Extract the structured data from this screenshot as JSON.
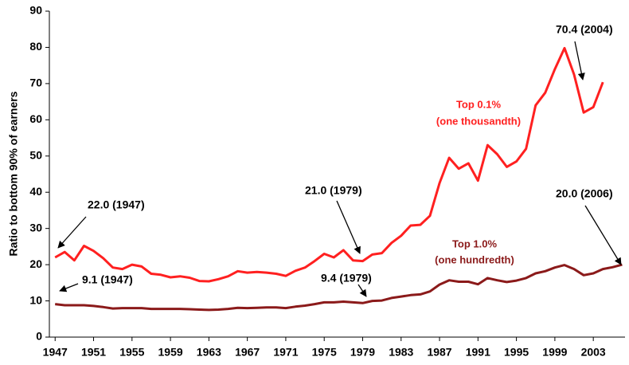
{
  "chart_data": {
    "type": "line",
    "y_label": "Ratio to bottom 90% of earners",
    "x": [
      1947,
      1948,
      1949,
      1950,
      1951,
      1952,
      1953,
      1954,
      1955,
      1956,
      1957,
      1958,
      1959,
      1960,
      1961,
      1962,
      1963,
      1964,
      1965,
      1966,
      1967,
      1968,
      1969,
      1970,
      1971,
      1972,
      1973,
      1974,
      1975,
      1976,
      1977,
      1978,
      1979,
      1980,
      1981,
      1982,
      1983,
      1984,
      1985,
      1986,
      1987,
      1988,
      1989,
      1990,
      1991,
      1992,
      1993,
      1994,
      1995,
      1996,
      1997,
      1998,
      1999,
      2000,
      2001,
      2002,
      2003,
      2004,
      2005,
      2006
    ],
    "series": [
      {
        "name": "Top 0.1%",
        "description": "(one thousandth)",
        "color": "#ff2020",
        "values": [
          22.0,
          23.5,
          21.2,
          25.2,
          23.8,
          21.8,
          19.2,
          18.8,
          20.0,
          19.5,
          17.5,
          17.2,
          16.5,
          16.8,
          16.4,
          15.5,
          15.4,
          16.0,
          16.8,
          18.2,
          17.8,
          18.0,
          17.8,
          17.5,
          16.9,
          18.3,
          19.2,
          21.0,
          23.0,
          22.0,
          24.0,
          21.2,
          21.0,
          22.8,
          23.2,
          26.0,
          28.0,
          30.8,
          31.0,
          33.5,
          42.5,
          49.5,
          46.5,
          48.0,
          43.2,
          53.0,
          50.5,
          47.0,
          48.5,
          52.0,
          64.0,
          67.5,
          74.0,
          79.8,
          72.5,
          62.0,
          63.5,
          70.4,
          null,
          null
        ]
      },
      {
        "name": "Top 1.0%",
        "description": "(one hundredth)",
        "color": "#8b1a1a",
        "values": [
          9.1,
          8.8,
          8.8,
          8.8,
          8.6,
          8.3,
          7.9,
          8.0,
          8.0,
          8.0,
          7.8,
          7.8,
          7.8,
          7.8,
          7.7,
          7.6,
          7.5,
          7.6,
          7.8,
          8.1,
          8.0,
          8.1,
          8.2,
          8.2,
          8.0,
          8.4,
          8.7,
          9.1,
          9.6,
          9.6,
          9.8,
          9.6,
          9.4,
          10.0,
          10.1,
          10.8,
          11.2,
          11.6,
          11.8,
          12.6,
          14.5,
          15.7,
          15.3,
          15.3,
          14.6,
          16.3,
          15.7,
          15.2,
          15.6,
          16.3,
          17.6,
          18.2,
          19.2,
          19.9,
          18.8,
          17.1,
          17.6,
          18.8,
          19.3,
          20.0
        ]
      }
    ],
    "annotations": [
      "22.0 (1947)",
      "9.1 (1947)",
      "21.0 (1979)",
      "9.4 (1979)",
      "70.4 (2004)",
      "20.0 (2006)"
    ],
    "xlim": [
      1946.4,
      2006.3
    ],
    "xticks": [
      1947,
      1951,
      1955,
      1959,
      1963,
      1967,
      1971,
      1975,
      1979,
      1983,
      1987,
      1991,
      1995,
      1999,
      2003
    ],
    "ylim": [
      0,
      90
    ],
    "yticks": [
      0,
      10,
      20,
      30,
      40,
      50,
      60,
      70,
      80,
      90
    ]
  }
}
